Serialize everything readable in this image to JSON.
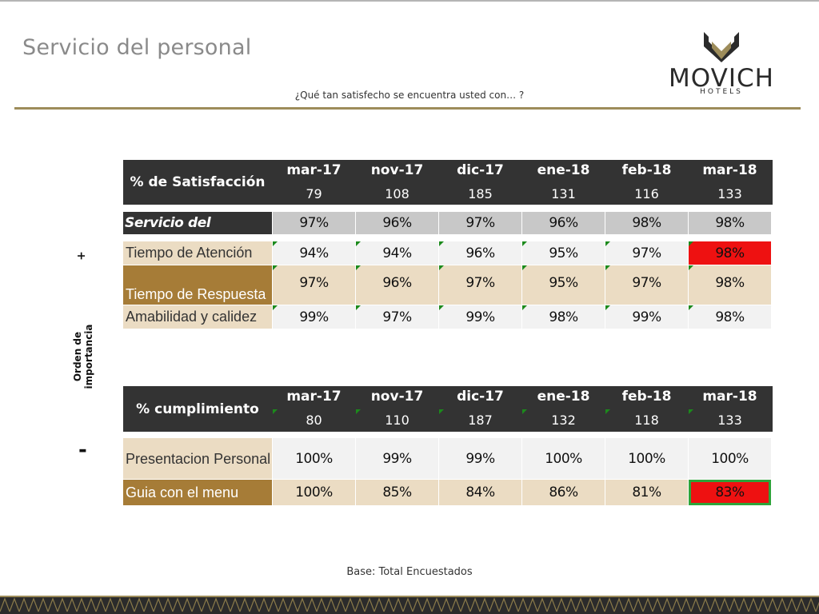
{
  "title": "Servicio del personal",
  "subtitle": "¿Qué tan satisfecho se encuentra usted con… ?",
  "logo": {
    "brand": "MOVICH",
    "sub": "HOTELS"
  },
  "axis": {
    "label": "Orden de importancia",
    "plus": "+",
    "minus": "-"
  },
  "satisfaction": {
    "header_label": "% de Satisfacción",
    "months": [
      {
        "month": "mar-17",
        "n": "79"
      },
      {
        "month": "nov-17",
        "n": "108"
      },
      {
        "month": "dic-17",
        "n": "185"
      },
      {
        "month": "ene-18",
        "n": "131"
      },
      {
        "month": "feb-18",
        "n": "116"
      },
      {
        "month": "mar-18",
        "n": "133"
      }
    ],
    "summary": {
      "label": "Servicio del Personal",
      "values": [
        "97%",
        "96%",
        "97%",
        "96%",
        "98%",
        "98%"
      ]
    },
    "rows": [
      {
        "label": "Tiempo de Atención",
        "values": [
          "94%",
          "94%",
          "96%",
          "95%",
          "97%",
          "98%"
        ]
      },
      {
        "label": "Tiempo de Respuesta",
        "values": [
          "97%",
          "96%",
          "97%",
          "95%",
          "97%",
          "98%"
        ]
      },
      {
        "label": "Amabilidad y calidez",
        "values": [
          "99%",
          "97%",
          "99%",
          "98%",
          "99%",
          "98%"
        ]
      }
    ]
  },
  "compliance": {
    "header_label": "% cumplimiento",
    "months": [
      {
        "month": "mar-17",
        "n": "80"
      },
      {
        "month": "nov-17",
        "n": "110"
      },
      {
        "month": "dic-17",
        "n": "187"
      },
      {
        "month": "ene-18",
        "n": "132"
      },
      {
        "month": "feb-18",
        "n": "118"
      },
      {
        "month": "mar-18",
        "n": "133"
      }
    ],
    "rows": [
      {
        "label": "Presentacion Personal",
        "values": [
          "100%",
          "99%",
          "99%",
          "100%",
          "100%",
          "100%"
        ]
      },
      {
        "label": "Guia con el menu",
        "values": [
          "100%",
          "85%",
          "84%",
          "86%",
          "81%",
          "83%"
        ]
      }
    ]
  },
  "base_note": "Base: Total Encuestados",
  "colors": {
    "header": "#333333",
    "accent_gold": "#9d8c5a",
    "row_beige": "#ebdcc3",
    "row_light": "#f2f2f2",
    "row_gray": "#c8c8c8",
    "row_brown": "#a67c37",
    "alert_red": "#ee1111",
    "highlight_green": "#2ea43a"
  }
}
